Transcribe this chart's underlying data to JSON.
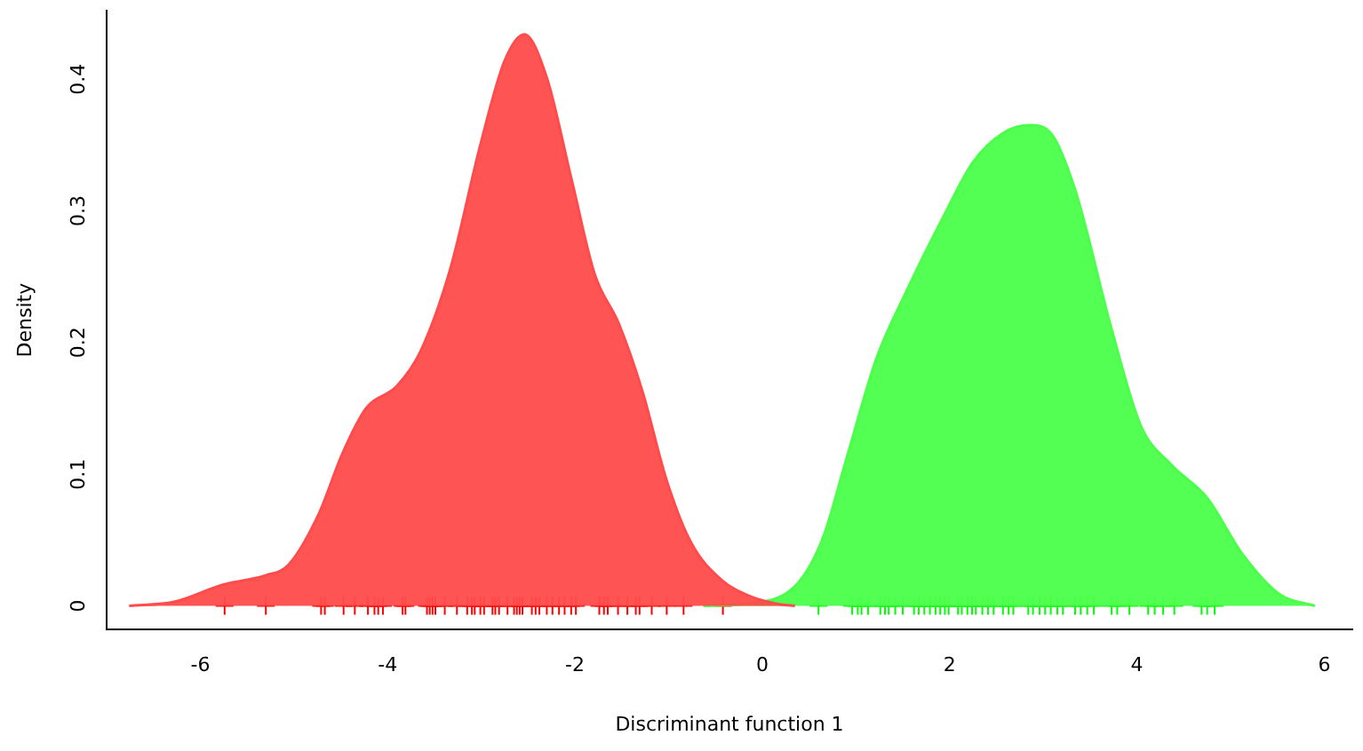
{
  "chart_data": {
    "type": "area",
    "xlabel": "Discriminant function 1",
    "ylabel": "Density",
    "xlim": [
      -7.0,
      6.3
    ],
    "ylim": [
      -0.018,
      0.452
    ],
    "xticks": [
      -6,
      -4,
      -2,
      0,
      2,
      4,
      6
    ],
    "yticks": [
      0,
      0.1,
      0.2,
      0.3,
      0.4
    ],
    "grid": false,
    "legend": false,
    "series": [
      {
        "color": "#ff4b4b",
        "x": [
          -6.76,
          -6.28,
          -5.76,
          -5.31,
          -5.06,
          -4.74,
          -4.48,
          -4.23,
          -3.9,
          -3.65,
          -3.33,
          -3.01,
          -2.75,
          -2.54,
          -2.3,
          -2.04,
          -1.79,
          -1.53,
          -1.28,
          -1.02,
          -0.76,
          -0.44,
          -0.12,
          0.2,
          0.35
        ],
        "values": [
          0,
          0.003,
          0.016,
          0.023,
          0.031,
          0.069,
          0.116,
          0.15,
          0.167,
          0.193,
          0.256,
          0.35,
          0.414,
          0.434,
          0.401,
          0.325,
          0.252,
          0.214,
          0.163,
          0.095,
          0.048,
          0.02,
          0.007,
          0.001,
          0
        ]
      },
      {
        "color": "#4bff4b",
        "x": [
          -0.63,
          0.0,
          0.39,
          0.65,
          0.9,
          1.22,
          1.54,
          1.93,
          2.25,
          2.57,
          2.86,
          3.08,
          3.34,
          3.73,
          4.04,
          4.37,
          4.75,
          5.13,
          5.52,
          5.9
        ],
        "values": [
          0,
          0.003,
          0.018,
          0.052,
          0.112,
          0.188,
          0.239,
          0.295,
          0.337,
          0.359,
          0.365,
          0.359,
          0.316,
          0.21,
          0.137,
          0.107,
          0.082,
          0.039,
          0.009,
          0
        ]
      },
      {
        "type": "scatter",
        "marker": "cross",
        "color": "#ff0000",
        "x": [
          -5.74,
          -5.3,
          -4.71,
          -4.67,
          -4.47,
          -4.35,
          -4.21,
          -4.14,
          -4.1,
          -4.05,
          -3.84,
          -3.81,
          -3.58,
          -3.55,
          -3.52,
          -3.49,
          -3.39,
          -3.26,
          -3.15,
          -3.1,
          -3.07,
          -3.01,
          -2.97,
          -2.88,
          -2.85,
          -2.81,
          -2.72,
          -2.65,
          -2.62,
          -2.59,
          -2.56,
          -2.46,
          -2.42,
          -2.38,
          -2.3,
          -2.24,
          -2.17,
          -2.11,
          -2.04,
          -1.99,
          -1.74,
          -1.69,
          -1.65,
          -1.54,
          -1.44,
          -1.35,
          -1.31,
          -1.18,
          -1.02,
          -0.84,
          -0.42
        ],
        "values": [
          0,
          0,
          0,
          0,
          0,
          0,
          0,
          0,
          0,
          0,
          0,
          0,
          0,
          0,
          0,
          0,
          0,
          0,
          0,
          0,
          0,
          0,
          0,
          0,
          0,
          0,
          0,
          0,
          0,
          0,
          0,
          0,
          0,
          0,
          0,
          0,
          0,
          0,
          0,
          0,
          0,
          0,
          0,
          0,
          0,
          0,
          0,
          0,
          0,
          0,
          0
        ]
      },
      {
        "type": "scatter",
        "marker": "cross",
        "color": "#00ff00",
        "x": [
          0.6,
          0.96,
          1.02,
          1.06,
          1.13,
          1.26,
          1.31,
          1.35,
          1.42,
          1.5,
          1.62,
          1.67,
          1.73,
          1.79,
          1.85,
          1.9,
          1.95,
          1.99,
          2.09,
          2.13,
          2.19,
          2.24,
          2.28,
          2.35,
          2.41,
          2.47,
          2.57,
          2.63,
          2.68,
          2.84,
          2.89,
          2.96,
          3.02,
          3.08,
          3.15,
          3.21,
          3.34,
          3.4,
          3.47,
          3.54,
          3.73,
          3.79,
          3.92,
          4.12,
          4.19,
          4.28,
          4.4,
          4.69,
          4.75,
          4.83
        ],
        "values": [
          0,
          0,
          0,
          0,
          0,
          0,
          0,
          0,
          0,
          0,
          0,
          0,
          0,
          0,
          0,
          0,
          0,
          0,
          0,
          0,
          0,
          0,
          0,
          0,
          0,
          0,
          0,
          0,
          0,
          0,
          0,
          0,
          0,
          0,
          0,
          0,
          0,
          0,
          0,
          0,
          0,
          0,
          0,
          0,
          0,
          0,
          0,
          0,
          0,
          0
        ]
      }
    ]
  }
}
